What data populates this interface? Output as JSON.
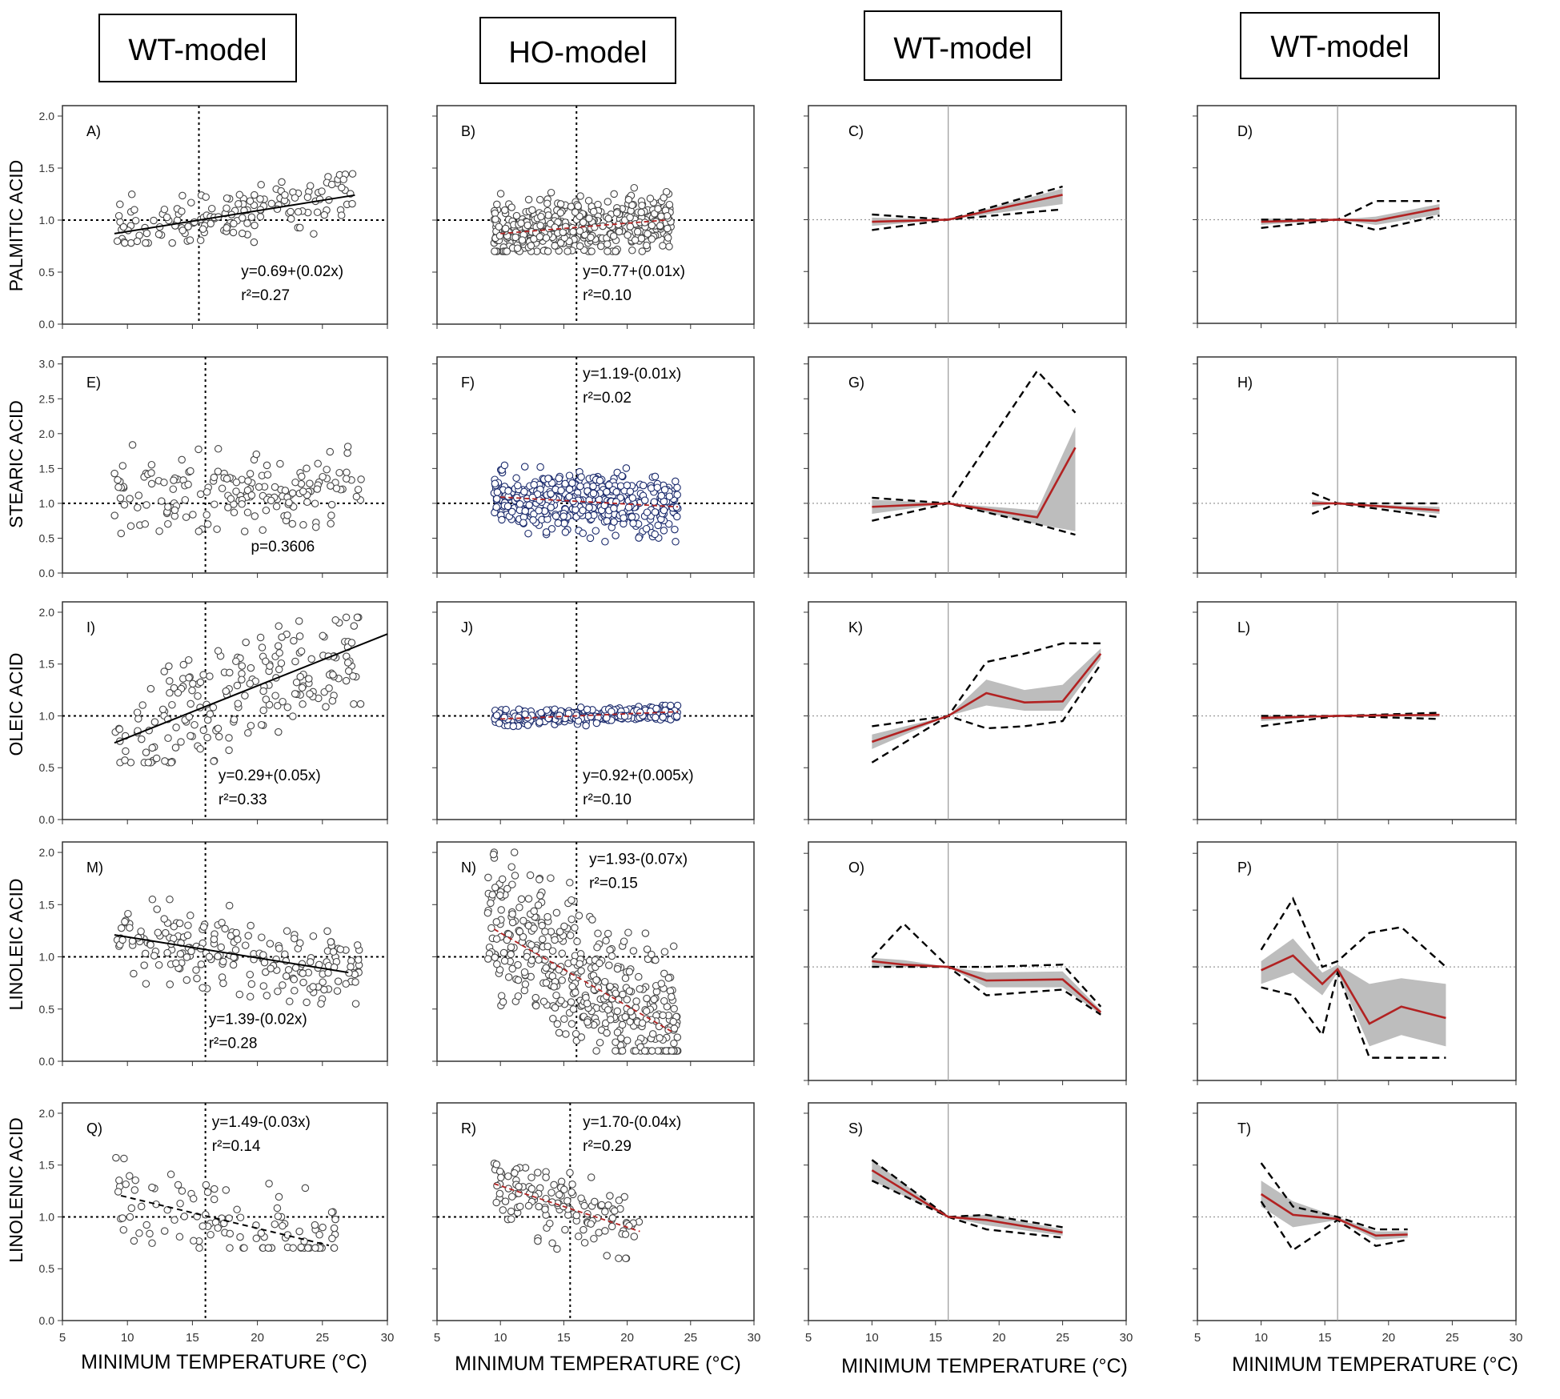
{
  "column_headers": [
    "WT-model",
    "HO-model",
    "WT-model",
    "WT-model"
  ],
  "row_labels": [
    "PALMITIC ACID",
    "STEARIC ACID",
    "OLEIC ACID",
    "LINOLEIC ACID",
    "LINOLENIC ACID"
  ],
  "xlabel": "MINIMUM TEMPERATURE (°C)",
  "x_ticks": [
    "5",
    "10",
    "15",
    "20",
    "25",
    "30"
  ],
  "colors": {
    "trend_red": "#b22222",
    "band_gray": "#bdbdbd",
    "axis": "#333333",
    "points_navy": "#1a2a6c"
  },
  "chart_data": [
    {
      "panel": "A)",
      "type": "scatter",
      "acid": "PALMITIC ACID",
      "model": "WT-model",
      "y_ticks": [
        "0.0",
        "0.5",
        "1.0",
        "1.5",
        "2.0"
      ],
      "ylim": [
        0,
        2.1
      ],
      "xlim": [
        5,
        30
      ],
      "ref_x": 15.5,
      "ref_y": 1.0,
      "regression": {
        "x0": 9,
        "x1": 27.5,
        "intercept": 0.69,
        "slope": 0.02,
        "style": "solid"
      },
      "cloud": {
        "xmin": 9,
        "xmax": 27.5,
        "ymin": 0.78,
        "ymax": 1.45,
        "n": 150,
        "seed": 11
      },
      "annotations": [
        "y=0.69+(0.02x)",
        "r²=0.27"
      ]
    },
    {
      "panel": "B)",
      "type": "scatter",
      "acid": "PALMITIC ACID",
      "model": "HO-model",
      "y_ticks": [],
      "ylim": [
        0,
        2.1
      ],
      "xlim": [
        5,
        30
      ],
      "ref_x": 16,
      "ref_y": 1.0,
      "regression": {
        "x0": 10,
        "x1": 23,
        "intercept": 0.77,
        "slope": 0.01,
        "style": "red-dashed"
      },
      "cloud": {
        "xmin": 9.5,
        "xmax": 23.5,
        "ymin": 0.7,
        "ymax": 1.45,
        "n": 420,
        "seed": 12
      },
      "annotations": [
        "y=0.77+(0.01x)",
        "r²=0.10"
      ]
    },
    {
      "panel": "C)",
      "type": "line",
      "acid": "PALMITIC ACID",
      "model": "WT-model",
      "ylim": [
        0,
        2.1
      ],
      "xlim": [
        5,
        30
      ],
      "ref_x": 16,
      "ref_y": 1.0,
      "x": [
        10,
        16,
        25
      ],
      "mean": [
        0.98,
        1.0,
        1.24
      ],
      "band_low": [
        0.94,
        1.0,
        1.15
      ],
      "band_high": [
        1.02,
        1.0,
        1.3
      ],
      "dash_low": [
        0.9,
        1.0,
        1.1
      ],
      "dash_high": [
        1.05,
        1.0,
        1.32
      ]
    },
    {
      "panel": "D)",
      "type": "line",
      "acid": "PALMITIC ACID",
      "model": "WT-model",
      "ylim": [
        0,
        2.1
      ],
      "xlim": [
        5,
        30
      ],
      "ref_x": 16,
      "ref_y": 1.0,
      "x": [
        10,
        16,
        19,
        24
      ],
      "mean": [
        0.98,
        1.0,
        0.99,
        1.11
      ],
      "band_low": [
        0.95,
        1.0,
        0.95,
        1.05
      ],
      "band_high": [
        1.01,
        1.0,
        1.03,
        1.15
      ],
      "dash_low": [
        0.92,
        1.0,
        0.9,
        1.04
      ],
      "dash_high": [
        1.0,
        1.0,
        1.18,
        1.18
      ]
    },
    {
      "panel": "E)",
      "type": "scatter",
      "acid": "STEARIC ACID",
      "model": "WT-model",
      "y_ticks": [
        "0.0",
        "0.5",
        "1.0",
        "1.5",
        "2.0",
        "2.5",
        "3.0"
      ],
      "ylim": [
        0,
        3.1
      ],
      "xlim": [
        5,
        30
      ],
      "ref_x": 16,
      "ref_y": 1.0,
      "regression": null,
      "cloud": {
        "xmin": 9,
        "xmax": 28,
        "ymin": 0.45,
        "ymax": 1.9,
        "n": 170,
        "seed": 21
      },
      "annotations": [
        "p=0.3606"
      ]
    },
    {
      "panel": "F)",
      "type": "scatter",
      "acid": "STEARIC ACID",
      "model": "HO-model",
      "y_ticks": [],
      "ylim": [
        0,
        3.1
      ],
      "xlim": [
        5,
        30
      ],
      "ref_x": 16,
      "ref_y": 1.0,
      "regression": {
        "x0": 10,
        "x1": 24,
        "intercept": 1.19,
        "slope": -0.01,
        "style": "red-dashed"
      },
      "cloud": {
        "xmin": 9.5,
        "xmax": 24,
        "ymin": 0.45,
        "ymax": 1.6,
        "n": 430,
        "seed": 22
      },
      "annotations": [
        "y=1.19-(0.01x)",
        "r²=0.02"
      ]
    },
    {
      "panel": "G)",
      "type": "line",
      "acid": "STEARIC ACID",
      "model": "WT-model",
      "ylim": [
        0,
        3.1
      ],
      "xlim": [
        5,
        30
      ],
      "ref_x": 16,
      "ref_y": 1.0,
      "x": [
        10,
        16,
        23,
        26
      ],
      "mean": [
        0.95,
        1.0,
        0.8,
        1.8
      ],
      "band_low": [
        0.85,
        1.0,
        0.7,
        0.6
      ],
      "band_high": [
        1.05,
        1.0,
        0.9,
        2.1
      ],
      "dash_low": [
        0.75,
        1.0,
        0.7,
        0.55
      ],
      "dash_high": [
        1.08,
        1.0,
        2.9,
        2.3
      ]
    },
    {
      "panel": "H)",
      "type": "line",
      "acid": "STEARIC ACID",
      "model": "WT-model",
      "ylim": [
        0,
        3.1
      ],
      "xlim": [
        5,
        30
      ],
      "ref_x": 16,
      "ref_y": 1.0,
      "x": [
        14,
        16,
        24
      ],
      "mean": [
        1.0,
        1.0,
        0.9
      ],
      "band_low": [
        0.95,
        1.0,
        0.85
      ],
      "band_high": [
        1.05,
        1.0,
        0.95
      ],
      "dash_low": [
        0.85,
        1.0,
        0.8
      ],
      "dash_high": [
        1.15,
        1.0,
        1.0
      ]
    },
    {
      "panel": "I)",
      "type": "scatter",
      "acid": "OLEIC ACID",
      "model": "WT-model",
      "y_ticks": [
        "0.0",
        "0.5",
        "1.0",
        "1.5",
        "2.0"
      ],
      "ylim": [
        0,
        2.1
      ],
      "xlim": [
        5,
        30
      ],
      "ref_x": 16,
      "ref_y": 1.0,
      "regression": {
        "x0": 9,
        "x1": 30,
        "intercept": 0.29,
        "slope": 0.05,
        "style": "solid"
      },
      "cloud": {
        "xmin": 9,
        "xmax": 28,
        "ymin": 0.55,
        "ymax": 1.95,
        "n": 200,
        "seed": 31
      },
      "annotations": [
        "y=0.29+(0.05x)",
        "r²=0.33"
      ]
    },
    {
      "panel": "J)",
      "type": "scatter",
      "acid": "OLEIC ACID",
      "model": "HO-model",
      "y_ticks": [],
      "ylim": [
        0,
        2.1
      ],
      "xlim": [
        5,
        30
      ],
      "ref_x": 16,
      "ref_y": 1.0,
      "regression": {
        "x0": 10,
        "x1": 24,
        "intercept": 0.92,
        "slope": 0.005,
        "style": "red-dashed"
      },
      "cloud": {
        "xmin": 9.5,
        "xmax": 24,
        "ymin": 0.9,
        "ymax": 1.1,
        "n": 300,
        "seed": 32
      },
      "annotations": [
        "y=0.92+(0.005x)",
        "r²=0.10"
      ]
    },
    {
      "panel": "K)",
      "type": "line",
      "acid": "OLEIC ACID",
      "model": "WT-model",
      "ylim": [
        0,
        2.1
      ],
      "xlim": [
        5,
        30
      ],
      "ref_x": 16,
      "ref_y": 1.0,
      "x": [
        10,
        16,
        19,
        22,
        25,
        28
      ],
      "mean": [
        0.75,
        1.0,
        1.22,
        1.13,
        1.14,
        1.6
      ],
      "band_low": [
        0.68,
        1.0,
        1.1,
        1.05,
        1.05,
        1.55
      ],
      "band_high": [
        0.82,
        1.0,
        1.35,
        1.25,
        1.3,
        1.65
      ],
      "dash_low": [
        0.55,
        1.0,
        0.88,
        0.9,
        0.95,
        1.5
      ],
      "dash_high": [
        0.9,
        1.0,
        1.52,
        1.6,
        1.7,
        1.7
      ]
    },
    {
      "panel": "L)",
      "type": "line",
      "acid": "OLEIC ACID",
      "model": "WT-model",
      "ylim": [
        0,
        2.1
      ],
      "xlim": [
        5,
        30
      ],
      "ref_x": 16,
      "ref_y": 1.0,
      "x": [
        10,
        16,
        24
      ],
      "mean": [
        0.98,
        1.0,
        1.01
      ],
      "band_low": [
        0.95,
        1.0,
        0.99
      ],
      "band_high": [
        1.0,
        1.0,
        1.02
      ],
      "dash_low": [
        0.9,
        1.0,
        0.97
      ],
      "dash_high": [
        1.0,
        1.0,
        1.03
      ]
    },
    {
      "panel": "M)",
      "type": "scatter",
      "acid": "LINOLEIC ACID",
      "model": "WT-model",
      "y_ticks": [
        "0.0",
        "0.5",
        "1.0",
        "1.5",
        "2.0"
      ],
      "ylim": [
        0,
        2.1
      ],
      "xlim": [
        5,
        30
      ],
      "ref_x": 16,
      "ref_y": 1.0,
      "regression": {
        "x0": 9,
        "x1": 27,
        "intercept": 1.39,
        "slope": -0.02,
        "style": "solid"
      },
      "cloud": {
        "xmin": 9,
        "xmax": 28,
        "ymin": 0.55,
        "ymax": 1.55,
        "n": 200,
        "seed": 41
      },
      "annotations": [
        "y=1.39-(0.02x)",
        "r²=0.28"
      ]
    },
    {
      "panel": "N)",
      "type": "scatter",
      "acid": "LINOLEIC ACID",
      "model": "HO-model",
      "y_ticks": [],
      "ylim": [
        0,
        2.1
      ],
      "xlim": [
        5,
        30
      ],
      "ref_x": 16,
      "ref_y": 1.0,
      "regression": {
        "x0": 9.5,
        "x1": 23.5,
        "intercept": 1.93,
        "slope": -0.07,
        "style": "red-dashed"
      },
      "cloud": {
        "xmin": 9,
        "xmax": 24,
        "ymin": 0.1,
        "ymax": 2.0,
        "n": 420,
        "seed": 42
      },
      "annotations": [
        "y=1.93-(0.07x)",
        "r²=0.15"
      ]
    },
    {
      "panel": "O)",
      "type": "line",
      "acid": "LINOLEIC ACID",
      "model": "WT-model",
      "ylim": [
        0,
        2.1
      ],
      "xlim": [
        5,
        30
      ],
      "ref_x": 16,
      "ref_y": 1.0,
      "x": [
        10,
        12.5,
        16,
        19,
        25,
        28
      ],
      "mean": [
        1.05,
        1.02,
        1.0,
        0.88,
        0.89,
        0.6
      ],
      "band_low": [
        1.0,
        1.0,
        1.0,
        0.82,
        0.82,
        0.58
      ],
      "band_high": [
        1.08,
        1.06,
        1.0,
        0.95,
        0.96,
        0.62
      ],
      "dash_low": [
        1.0,
        1.0,
        1.0,
        0.75,
        0.8,
        0.58
      ],
      "dash_high": [
        1.08,
        1.38,
        1.0,
        1.0,
        1.02,
        0.65
      ]
    },
    {
      "panel": "P)",
      "type": "line",
      "acid": "LINOLEIC ACID",
      "model": "WT-model",
      "ylim": [
        0,
        2.1
      ],
      "xlim": [
        5,
        30
      ],
      "ref_x": 16,
      "ref_y": 1.0,
      "x": [
        10,
        12.5,
        14.8,
        16,
        18.5,
        21,
        24.5
      ],
      "mean": [
        0.97,
        1.1,
        0.85,
        0.98,
        0.5,
        0.65,
        0.55
      ],
      "band_low": [
        0.85,
        0.95,
        0.75,
        0.95,
        0.3,
        0.4,
        0.3
      ],
      "band_high": [
        1.05,
        1.25,
        0.95,
        1.02,
        0.85,
        0.9,
        0.85
      ],
      "dash_low": [
        0.82,
        0.75,
        0.4,
        0.95,
        0.2,
        0.2,
        0.2
      ],
      "dash_high": [
        1.15,
        1.6,
        1.0,
        1.05,
        1.3,
        1.35,
        1.0
      ]
    },
    {
      "panel": "Q)",
      "type": "scatter",
      "acid": "LINOLENIC ACID",
      "model": "WT-model",
      "y_ticks": [
        "0.0",
        "0.5",
        "1.0",
        "1.5",
        "2.0"
      ],
      "ylim": [
        0,
        2.1
      ],
      "xlim": [
        5,
        30
      ],
      "ref_x": 16,
      "ref_y": 1.0,
      "regression": {
        "x0": 9.5,
        "x1": 25.5,
        "intercept": 1.49,
        "slope": -0.03,
        "style": "dashed"
      },
      "cloud": {
        "xmin": 9,
        "xmax": 26,
        "ymin": 0.7,
        "ymax": 1.95,
        "n": 110,
        "seed": 51
      },
      "annotations": [
        "y=1.49-(0.03x)",
        "r²=0.14"
      ]
    },
    {
      "panel": "R)",
      "type": "scatter",
      "acid": "LINOLENIC ACID",
      "model": "HO-model",
      "y_ticks": [],
      "ylim": [
        0,
        2.1
      ],
      "xlim": [
        5,
        30
      ],
      "ref_x": 15.5,
      "ref_y": 1.0,
      "regression": {
        "x0": 9.5,
        "x1": 21,
        "intercept": 1.7,
        "slope": -0.04,
        "style": "red-dashed"
      },
      "cloud": {
        "xmin": 9.5,
        "xmax": 21,
        "ymin": 0.6,
        "ymax": 1.55,
        "n": 130,
        "seed": 52
      },
      "annotations": [
        "y=1.70-(0.04x)",
        "r²=0.29"
      ]
    },
    {
      "panel": "S)",
      "type": "line",
      "acid": "LINOLENIC ACID",
      "model": "WT-model",
      "ylim": [
        0,
        2.1
      ],
      "xlim": [
        5,
        30
      ],
      "ref_x": 16,
      "ref_y": 1.0,
      "x": [
        10,
        16,
        19,
        25
      ],
      "mean": [
        1.45,
        1.0,
        0.97,
        0.85
      ],
      "band_low": [
        1.35,
        1.0,
        0.92,
        0.82
      ],
      "band_high": [
        1.55,
        1.0,
        1.02,
        0.88
      ],
      "dash_low": [
        1.35,
        1.0,
        0.88,
        0.8
      ],
      "dash_high": [
        1.55,
        1.0,
        1.02,
        0.9
      ]
    },
    {
      "panel": "T)",
      "type": "line",
      "acid": "LINOLENIC ACID",
      "model": "WT-model",
      "ylim": [
        0,
        2.1
      ],
      "xlim": [
        5,
        30
      ],
      "ref_x": 16,
      "ref_y": 1.0,
      "x": [
        10,
        12.5,
        16,
        19,
        21.5
      ],
      "mean": [
        1.22,
        1.02,
        0.98,
        0.82,
        0.83
      ],
      "band_low": [
        1.1,
        0.9,
        0.97,
        0.78,
        0.8
      ],
      "band_high": [
        1.35,
        1.15,
        1.0,
        0.86,
        0.86
      ],
      "dash_low": [
        1.15,
        0.68,
        0.97,
        0.72,
        0.78
      ],
      "dash_high": [
        1.52,
        1.1,
        1.0,
        0.88,
        0.88
      ]
    }
  ]
}
